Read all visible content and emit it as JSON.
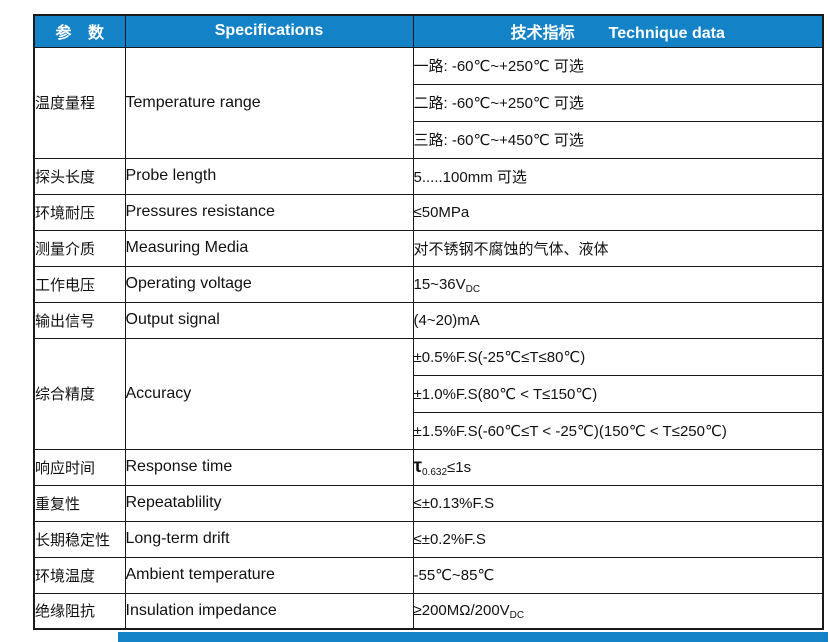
{
  "colors": {
    "header_background": "#1482C6",
    "header_text": "#ffffff",
    "body_text": "#111111",
    "border": "#1a1a1a",
    "bottom_strip": "#1482C6"
  },
  "table": {
    "header": {
      "param": "参 数",
      "specifications": "Specifications",
      "technique_cn": "技术指标",
      "technique_en": "Technique data"
    },
    "rows": [
      {
        "param_cn": "温度量程",
        "param_en": "Temperature range",
        "values": [
          [
            {
              "t": "一路: -60℃~+250℃ 可选"
            }
          ],
          [
            {
              "t": "二路: -60℃~+250℃ 可选"
            }
          ],
          [
            {
              "t": "三路: -60℃~+450℃ 可选"
            }
          ]
        ]
      },
      {
        "param_cn": "探头长度",
        "param_en": "Probe length",
        "values": [
          [
            {
              "t": "5.....100mm 可选"
            }
          ]
        ]
      },
      {
        "param_cn": "环境耐压",
        "param_en": "Pressures resistance",
        "values": [
          [
            {
              "t": "≤50MPa"
            }
          ]
        ]
      },
      {
        "param_cn": "测量介质",
        "param_en": "Measuring Media",
        "values": [
          [
            {
              "t": "对不锈钢不腐蚀的气体、液体"
            }
          ]
        ]
      },
      {
        "param_cn": "工作电压",
        "param_en": "Operating voltage",
        "values": [
          [
            {
              "t": "15~36V"
            },
            {
              "t": "DC",
              "sub": true
            }
          ]
        ]
      },
      {
        "param_cn": "输出信号",
        "param_en": "Output signal",
        "values": [
          [
            {
              "t": "(4~20)mA"
            }
          ]
        ]
      },
      {
        "param_cn": "综合精度",
        "param_en": "Accuracy",
        "values": [
          [
            {
              "t": "±0.5%F.S(-25℃≤T≤80℃)"
            }
          ],
          [
            {
              "t": "±1.0%F.S(80℃ < T≤150℃)"
            }
          ],
          [
            {
              "t": "±1.5%F.S(-60℃≤T < -25℃)(150℃ < T≤250℃)"
            }
          ]
        ]
      },
      {
        "param_cn": "响应时间",
        "param_en": "Response time",
        "values": [
          [
            {
              "t": "τ",
              "tau": true
            },
            {
              "t": "0.632",
              "sub": true
            },
            {
              "t": "≤1s"
            }
          ]
        ]
      },
      {
        "param_cn": "重复性",
        "param_en": "Repeatablility",
        "values": [
          [
            {
              "t": "≤±0.13%F.S"
            }
          ]
        ]
      },
      {
        "param_cn": "长期稳定性",
        "param_en": "Long-term drift",
        "values": [
          [
            {
              "t": "≤±0.2%F.S"
            }
          ]
        ]
      },
      {
        "param_cn": "环境温度",
        "param_en": "Ambient temperature",
        "values": [
          [
            {
              "t": "-55℃~85℃"
            }
          ]
        ]
      },
      {
        "param_cn": "绝缘阻抗",
        "param_en": "Insulation impedance",
        "values": [
          [
            {
              "t": "≥200MΩ/200V"
            },
            {
              "t": "DC",
              "sub": true
            }
          ]
        ]
      }
    ]
  }
}
